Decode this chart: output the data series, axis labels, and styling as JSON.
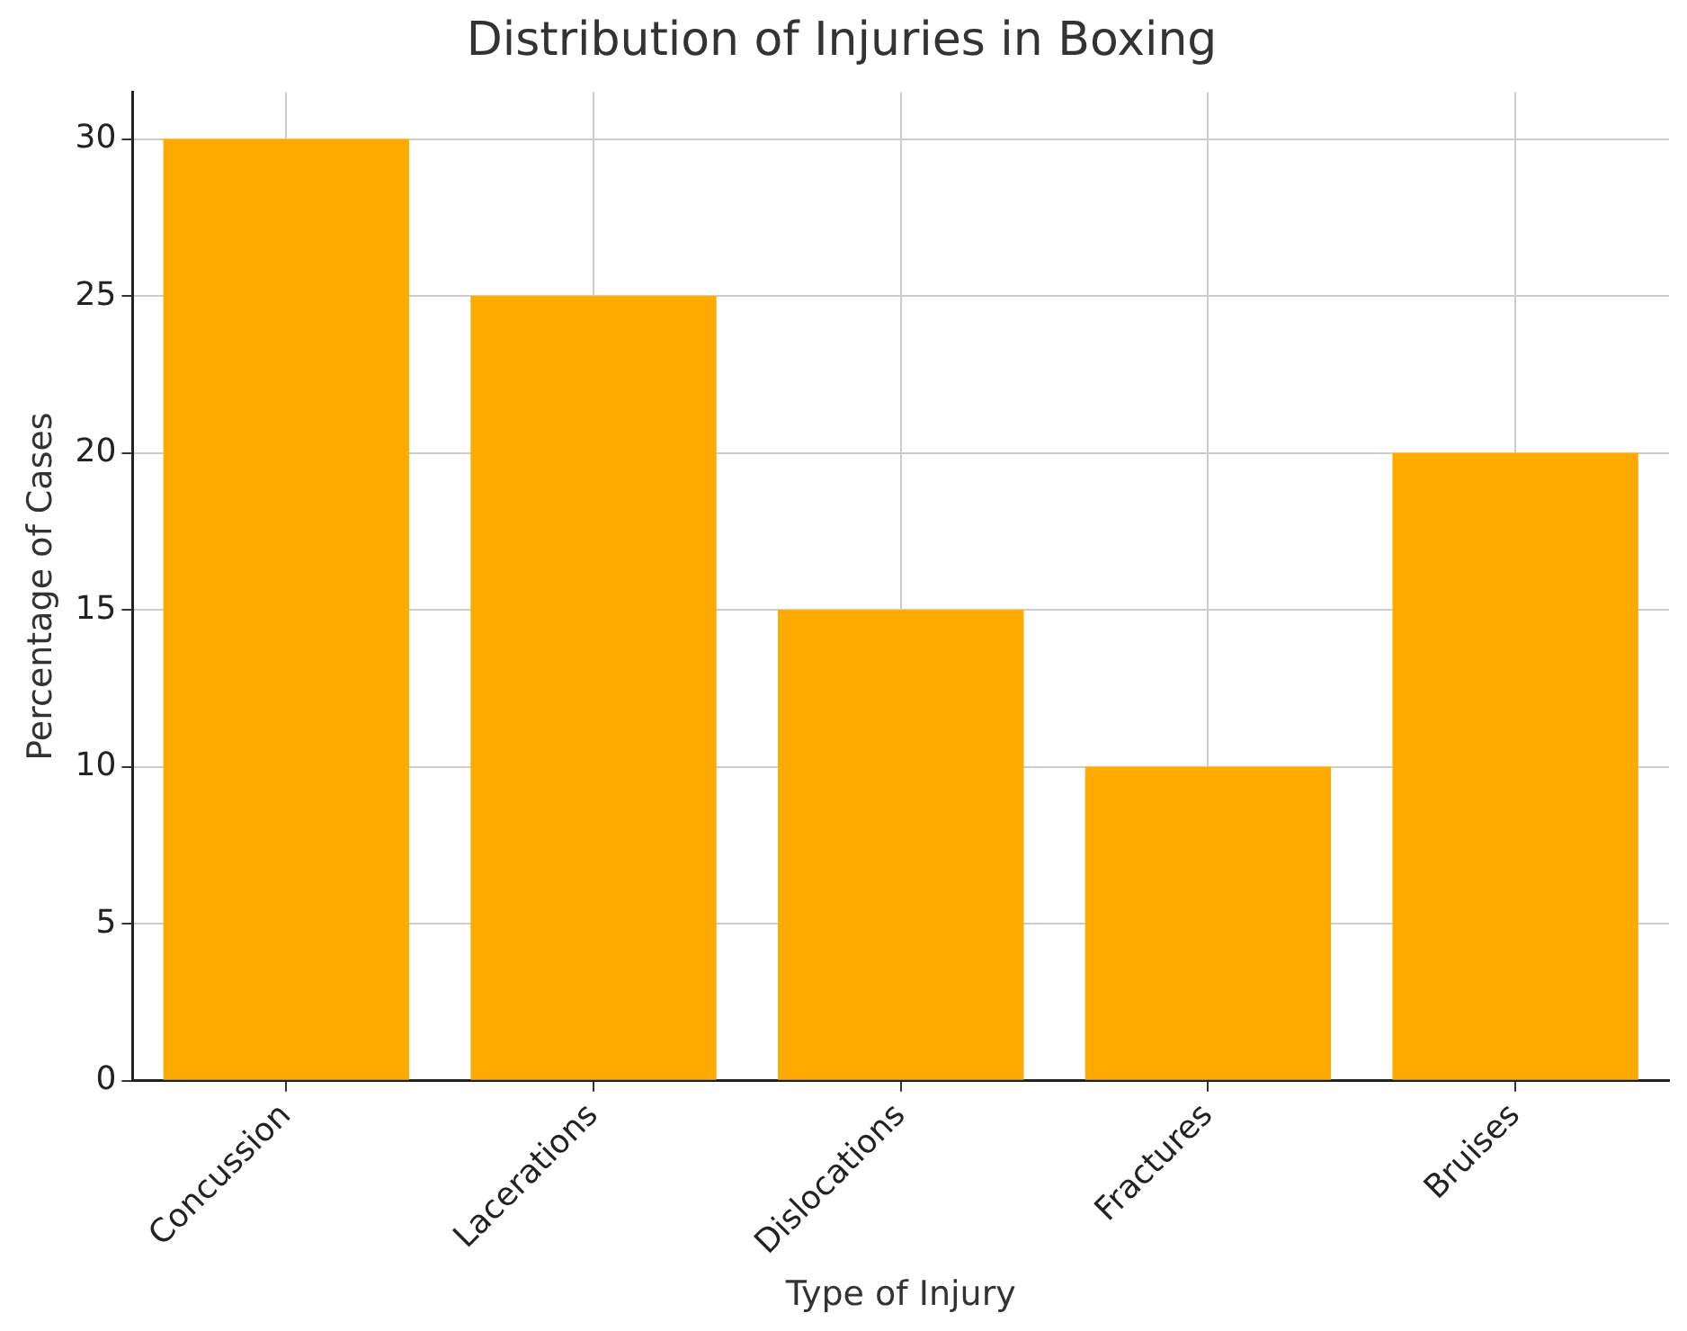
{
  "chart_data": {
    "type": "bar",
    "title": "Distribution of Injuries in Boxing",
    "xlabel": "Type of Injury",
    "ylabel": "Percentage of Cases",
    "categories": [
      "Concussion",
      "Lacerations",
      "Dislocations",
      "Fractures",
      "Bruises"
    ],
    "values": [
      30,
      25,
      15,
      10,
      20
    ],
    "color": "#ffaa00",
    "ylim": [
      0,
      31.5
    ],
    "yticks": [
      0,
      5,
      10,
      15,
      20,
      25,
      30
    ],
    "grid": true,
    "legend": false
  }
}
